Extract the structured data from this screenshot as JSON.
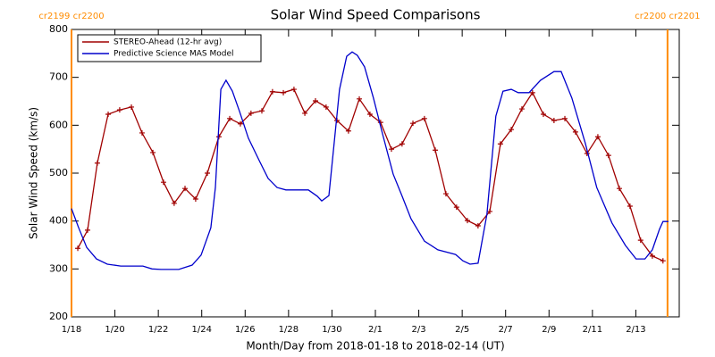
{
  "chart_data": {
    "type": "line",
    "title": "Solar Wind Speed Comparisons",
    "xlabel": "Month/Day from 2018-01-18 to 2018-02-14 (UT)",
    "ylabel": "Solar Wind Speed (km/s)",
    "xlim": [
      0,
      28
    ],
    "ylim": [
      200,
      800
    ],
    "xticks": [
      {
        "value": 0,
        "label": "1/18"
      },
      {
        "value": 2,
        "label": "1/20"
      },
      {
        "value": 4,
        "label": "1/22"
      },
      {
        "value": 6,
        "label": "1/24"
      },
      {
        "value": 8,
        "label": "1/26"
      },
      {
        "value": 10,
        "label": "1/28"
      },
      {
        "value": 12,
        "label": "1/30"
      },
      {
        "value": 14,
        "label": "2/1"
      },
      {
        "value": 16,
        "label": "2/3"
      },
      {
        "value": 18,
        "label": "2/5"
      },
      {
        "value": 20,
        "label": "2/7"
      },
      {
        "value": 22,
        "label": "2/9"
      },
      {
        "value": 24,
        "label": "2/11"
      },
      {
        "value": 26,
        "label": "2/13"
      }
    ],
    "yticks": [
      200,
      300,
      400,
      500,
      600,
      700,
      800
    ],
    "legend": "upper left",
    "markers": [
      {
        "x": 0,
        "label": "cr2199 cr2200",
        "color": "#ff8c00"
      },
      {
        "x": 27.46,
        "label": "cr2200 cr2201",
        "color": "#ff8c00"
      }
    ],
    "series": [
      {
        "name": "STEREO-Ahead (12-hr avg)",
        "color": "#a00000",
        "marker": "+",
        "x": [
          0.29,
          0.74,
          1.19,
          1.69,
          2.22,
          2.76,
          3.25,
          3.75,
          4.24,
          4.73,
          5.23,
          5.72,
          6.26,
          6.79,
          7.29,
          7.78,
          8.27,
          8.77,
          9.26,
          9.76,
          10.25,
          10.75,
          11.24,
          11.73,
          12.23,
          12.76,
          13.26,
          13.75,
          14.24,
          14.74,
          15.23,
          15.73,
          16.26,
          16.76,
          17.25,
          17.74,
          18.24,
          18.73,
          19.27,
          19.76,
          20.26,
          20.75,
          21.24,
          21.74,
          22.23,
          22.73,
          23.22,
          23.75,
          24.25,
          24.74,
          25.24,
          25.73,
          26.22,
          26.76,
          27.25
        ],
        "values": [
          343,
          381,
          521,
          623,
          632,
          638,
          584,
          543,
          481,
          437,
          468,
          446,
          500,
          576,
          614,
          603,
          625,
          630,
          670,
          668,
          675,
          625,
          651,
          638,
          610,
          588,
          655,
          623,
          606,
          550,
          561,
          604,
          614,
          548,
          457,
          429,
          401,
          390,
          420,
          561,
          591,
          634,
          668,
          623,
          610,
          614,
          586,
          541,
          576,
          537,
          468,
          431,
          360,
          327,
          317
        ]
      },
      {
        "name": "Predictive Science MAS Model",
        "color": "#0000cc",
        "x": [
          0,
          0.33,
          0.7,
          1.15,
          1.65,
          2.27,
          3.29,
          3.71,
          4.12,
          4.94,
          5.56,
          5.97,
          6.42,
          6.63,
          6.88,
          7.12,
          7.41,
          7.74,
          8.15,
          8.65,
          9.06,
          9.47,
          9.88,
          10.91,
          11.32,
          11.53,
          11.86,
          12.1,
          12.35,
          12.68,
          12.93,
          13.17,
          13.5,
          13.91,
          14.33,
          14.82,
          15.23,
          15.64,
          16.26,
          16.88,
          17.7,
          18.03,
          18.36,
          18.73,
          19.14,
          19.55,
          19.88,
          20.26,
          20.58,
          21.08,
          21.61,
          22.23,
          22.56,
          23.05,
          23.67,
          24.2,
          24.9,
          25.52,
          26.01,
          26.42,
          26.76,
          27.09,
          27.25,
          27.5
        ],
        "values": [
          426,
          386,
          345,
          321,
          310,
          306,
          306,
          300,
          299,
          299,
          308,
          329,
          386,
          470,
          675,
          694,
          671,
          629,
          573,
          526,
          489,
          470,
          465,
          465,
          452,
          442,
          453,
          563,
          675,
          744,
          753,
          746,
          722,
          657,
          582,
          498,
          452,
          405,
          358,
          340,
          330,
          317,
          310,
          312,
          414,
          619,
          671,
          675,
          668,
          668,
          694,
          712,
          712,
          657,
          563,
          470,
          396,
          349,
          321,
          321,
          340,
          383,
          399,
          399
        ]
      }
    ]
  }
}
